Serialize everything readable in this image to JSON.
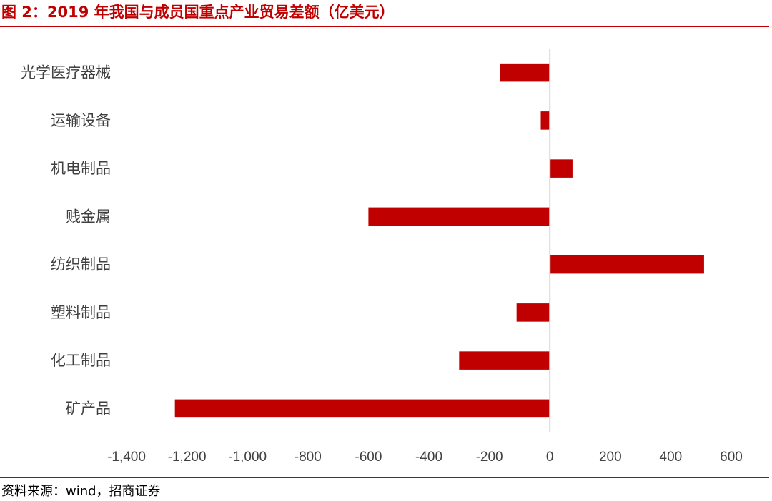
{
  "figure": {
    "title": "图 2：2019 年我国与成员国重点产业贸易差额（亿美元）",
    "source": "资料来源：wind，招商证券"
  },
  "colors": {
    "bar": "#c00000",
    "axis": "#d9d9d9",
    "rule": "#c00000"
  },
  "chart_data": {
    "type": "bar",
    "orientation": "horizontal",
    "categories": [
      "光学医疗器械",
      "运输设备",
      "机电制品",
      "贱金属",
      "纺织制品",
      "塑料制品",
      "化工制品",
      "矿产品"
    ],
    "values": [
      -165,
      -30,
      75,
      -600,
      510,
      -110,
      -300,
      -1240
    ],
    "title": "",
    "xlabel": "",
    "ylabel": "",
    "xlim": [
      -1400,
      600
    ],
    "xticks": [
      -1400,
      -1200,
      -1000,
      -800,
      -600,
      -400,
      -200,
      0,
      200,
      400,
      600
    ],
    "xtick_labels": [
      "-1,400",
      "-1,200",
      "-1,000",
      "-800",
      "-600",
      "-400",
      "-200",
      "0",
      "200",
      "400",
      "600"
    ],
    "grid": false,
    "legend": "none"
  }
}
